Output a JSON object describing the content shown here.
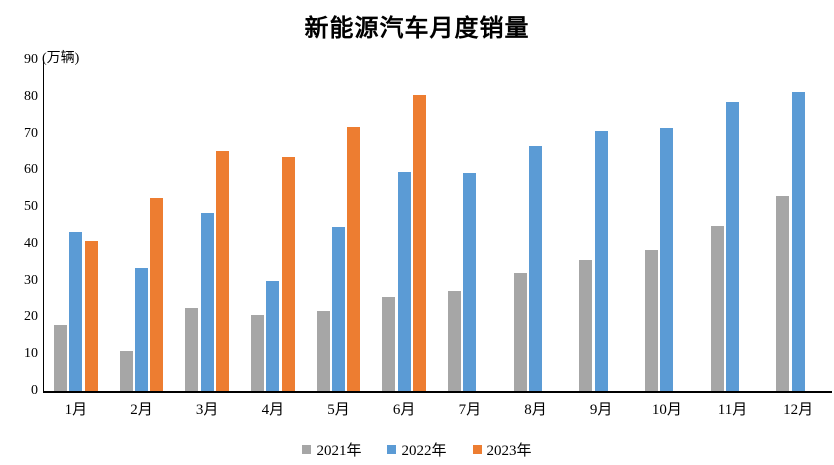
{
  "title": "新能源汽车月度销量",
  "unit_label": "(万辆)",
  "chart_data": {
    "type": "bar",
    "title": "新能源汽车月度销量",
    "ylabel": "(万辆)",
    "xlabel": "",
    "ylim": [
      0,
      90
    ],
    "yticks": [
      0,
      10,
      20,
      30,
      40,
      50,
      60,
      70,
      80,
      90
    ],
    "grid": false,
    "legend_position": "bottom",
    "categories": [
      "1月",
      "2月",
      "3月",
      "4月",
      "5月",
      "6月",
      "7月",
      "8月",
      "9月",
      "10月",
      "11月",
      "12月"
    ],
    "series": [
      {
        "name": "2021年",
        "color": "#A6A6A6",
        "values": [
          17.9,
          11.0,
          22.6,
          20.6,
          21.7,
          25.6,
          27.1,
          32.1,
          35.7,
          38.3,
          45.0,
          53.1
        ]
      },
      {
        "name": "2022年",
        "color": "#5B9BD5",
        "values": [
          43.1,
          33.4,
          48.4,
          29.9,
          44.7,
          59.6,
          59.3,
          66.6,
          70.8,
          71.4,
          78.6,
          81.4
        ]
      },
      {
        "name": "2023年",
        "color": "#ED7D31",
        "values": [
          40.8,
          52.5,
          65.3,
          63.6,
          71.7,
          80.6,
          null,
          null,
          null,
          null,
          null,
          null
        ]
      }
    ]
  }
}
